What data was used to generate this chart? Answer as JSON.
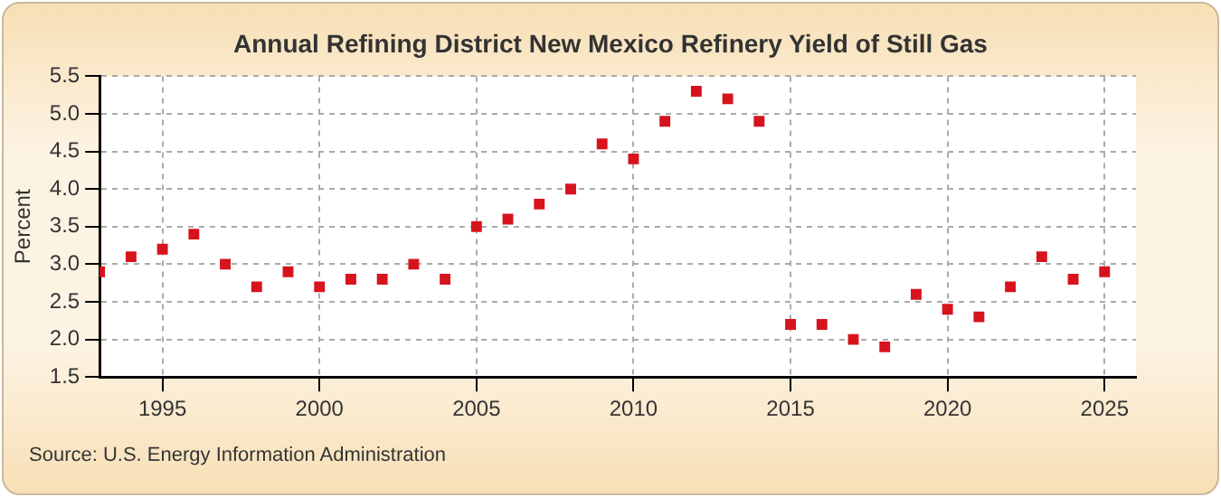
{
  "chart_data": {
    "type": "scatter",
    "title": "Annual Refining District New Mexico Refinery Yield of Still Gas",
    "ylabel": "Percent",
    "x": [
      1993,
      1994,
      1995,
      1996,
      1997,
      1998,
      1999,
      2000,
      2001,
      2002,
      2003,
      2004,
      2005,
      2006,
      2007,
      2008,
      2009,
      2010,
      2011,
      2012,
      2013,
      2014,
      2015,
      2016,
      2017,
      2018,
      2019,
      2020,
      2021,
      2022,
      2023,
      2024,
      2025
    ],
    "series": [
      {
        "color": "#d7141e",
        "values": [
          2.9,
          3.1,
          3.2,
          3.4,
          3.0,
          2.7,
          2.9,
          2.7,
          2.8,
          2.8,
          3.0,
          2.8,
          3.5,
          3.6,
          3.8,
          4.0,
          4.6,
          4.4,
          4.9,
          5.3,
          5.2,
          4.9,
          2.2,
          2.2,
          2.0,
          1.9,
          2.6,
          2.4,
          2.3,
          2.7,
          3.1,
          2.8,
          2.9
        ]
      }
    ],
    "xlim": [
      1993,
      2026
    ],
    "xticks": [
      1995,
      2000,
      2005,
      2010,
      2015,
      2020,
      2025
    ],
    "ylim": [
      1.5,
      5.5
    ],
    "yticks": [
      {
        "value": 1.5,
        "label": "1.5"
      },
      {
        "value": 2,
        "label": "2.0"
      },
      {
        "value": 2.5,
        "label": "2.5"
      },
      {
        "value": 3,
        "label": "3.0"
      },
      {
        "value": 3.5,
        "label": "3.5"
      },
      {
        "value": 4,
        "label": "4.0"
      },
      {
        "value": 4.5,
        "label": "4.5"
      },
      {
        "value": 5,
        "label": "5.0"
      },
      {
        "value": 5.5,
        "label": "5.5"
      }
    ],
    "grid": true,
    "legend": false,
    "marker": "square",
    "annotations": [
      "Source: U.S. Energy Information Administration"
    ]
  }
}
